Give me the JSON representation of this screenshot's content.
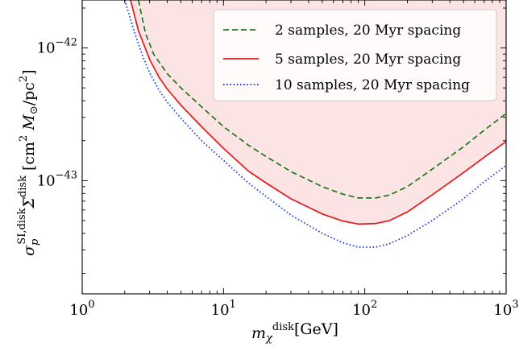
{
  "chart_data": {
    "type": "line",
    "xscale": "log",
    "yscale": "log",
    "xlim": [
      1,
      1000
    ],
    "ylim": [
      1.4e-44,
      2.3e-42
    ],
    "xticks": [
      {
        "value": 1,
        "base": "10",
        "exp": "0"
      },
      {
        "value": 10,
        "base": "10",
        "exp": "1"
      },
      {
        "value": 100,
        "base": "10",
        "exp": "2"
      },
      {
        "value": 1000,
        "base": "10",
        "exp": "3"
      }
    ],
    "yticks": [
      {
        "value": 1e-43,
        "base": "10",
        "exp": "−43"
      },
      {
        "value": 1e-42,
        "base": "10",
        "exp": "−42"
      }
    ],
    "xlabel": {
      "main": "m",
      "sub": "χ",
      "sup": "disk",
      "unit": "[GeV]"
    },
    "ylabel": {
      "main": "σ",
      "sub": "p",
      "sup": "SI,disk",
      "sigma": "Σ",
      "sigma_sup": "disk",
      "unit_open": "[cm",
      "unit_sq": "2",
      "msun": "M",
      "msun_sub": "⊙",
      "unit_pc": "/pc",
      "unit_close": "]"
    },
    "shaded_region": {
      "boundary_series": "5 samples, 20 Myr spacing",
      "direction": "above",
      "color": "#fde4e4"
    },
    "legend": {
      "position": "upper right"
    },
    "series": [
      {
        "name": "2 samples, 20 Myr spacing",
        "color": "#1a7a1a",
        "style": "dashed",
        "x": [
          2.5,
          2.8,
          3.2,
          4,
          5,
          7,
          10,
          15,
          20,
          30,
          50,
          70,
          90,
          120,
          150,
          200,
          300,
          500,
          700,
          1000
        ],
        "y": [
          2.3e-42,
          1.3e-42,
          9e-43,
          6.4e-43,
          5e-43,
          3.6e-43,
          2.55e-43,
          1.85e-43,
          1.52e-43,
          1.17e-43,
          9e-44,
          7.9e-44,
          7.4e-44,
          7.4e-44,
          7.8e-44,
          9e-44,
          1.22e-43,
          1.8e-43,
          2.4e-43,
          3.2e-43
        ]
      },
      {
        "name": "5 samples, 20 Myr spacing",
        "color": "#e31a1c",
        "style": "solid",
        "x": [
          2.2,
          2.5,
          3,
          3.5,
          4,
          5,
          7,
          10,
          15,
          20,
          30,
          50,
          70,
          90,
          120,
          150,
          200,
          300,
          500,
          700,
          1000
        ],
        "y": [
          2.3e-42,
          1.35e-42,
          8.2e-43,
          6e-43,
          4.9e-43,
          3.7e-43,
          2.55e-43,
          1.75e-43,
          1.18e-43,
          9.6e-44,
          7.3e-44,
          5.6e-44,
          4.95e-44,
          4.7e-44,
          4.75e-44,
          5e-44,
          5.8e-44,
          7.8e-44,
          1.15e-43,
          1.5e-43,
          1.97e-43
        ]
      },
      {
        "name": "10 samples, 20 Myr spacing",
        "color": "#1f3fd6",
        "style": "dotted",
        "x": [
          2.0,
          2.3,
          2.7,
          3,
          3.5,
          4,
          5,
          7,
          10,
          15,
          20,
          30,
          50,
          70,
          90,
          120,
          150,
          200,
          300,
          500,
          700,
          1000
        ],
        "y": [
          2.3e-42,
          1.4e-42,
          8.5e-43,
          6.5e-43,
          4.8e-43,
          3.9e-43,
          2.95e-43,
          2e-43,
          1.42e-43,
          9.6e-44,
          7.6e-44,
          5.5e-44,
          4e-44,
          3.4e-44,
          3.15e-44,
          3.15e-44,
          3.35e-44,
          3.85e-44,
          5e-44,
          7.3e-44,
          9.8e-44,
          1.3e-43
        ]
      }
    ]
  }
}
